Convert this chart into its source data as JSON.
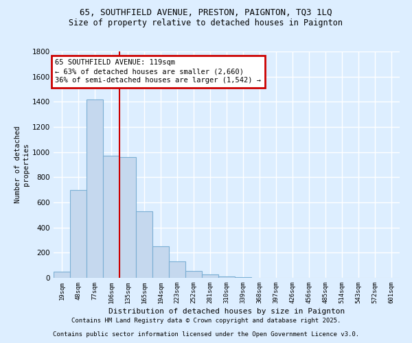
{
  "title_line1": "65, SOUTHFIELD AVENUE, PRESTON, PAIGNTON, TQ3 1LQ",
  "title_line2": "Size of property relative to detached houses in Paignton",
  "xlabel": "Distribution of detached houses by size in Paignton",
  "ylabel": "Number of detached\nproperties",
  "categories": [
    "19sqm",
    "48sqm",
    "77sqm",
    "106sqm",
    "135sqm",
    "165sqm",
    "194sqm",
    "223sqm",
    "252sqm",
    "281sqm",
    "310sqm",
    "339sqm",
    "368sqm",
    "397sqm",
    "426sqm",
    "456sqm",
    "485sqm",
    "514sqm",
    "543sqm",
    "572sqm",
    "601sqm"
  ],
  "values": [
    50,
    700,
    1420,
    970,
    960,
    530,
    250,
    130,
    55,
    30,
    10,
    4,
    2,
    1,
    0,
    0,
    0,
    0,
    0,
    0,
    0
  ],
  "bar_color": "#c5d8ee",
  "bar_edge_color": "#7bafd4",
  "annotation_text_line1": "65 SOUTHFIELD AVENUE: 119sqm",
  "annotation_text_line2": "← 63% of detached houses are smaller (2,660)",
  "annotation_text_line3": "36% of semi-detached houses are larger (1,542) →",
  "vline_color": "#cc0000",
  "box_edge_color": "#cc0000",
  "ylim": [
    0,
    1800
  ],
  "yticks": [
    0,
    200,
    400,
    600,
    800,
    1000,
    1200,
    1400,
    1600,
    1800
  ],
  "footer_line1": "Contains HM Land Registry data © Crown copyright and database right 2025.",
  "footer_line2": "Contains public sector information licensed under the Open Government Licence v3.0.",
  "bg_color": "#ddeeff",
  "plot_bg_color": "#ddeeff",
  "grid_color": "#ffffff",
  "vline_x_index": 3.5
}
